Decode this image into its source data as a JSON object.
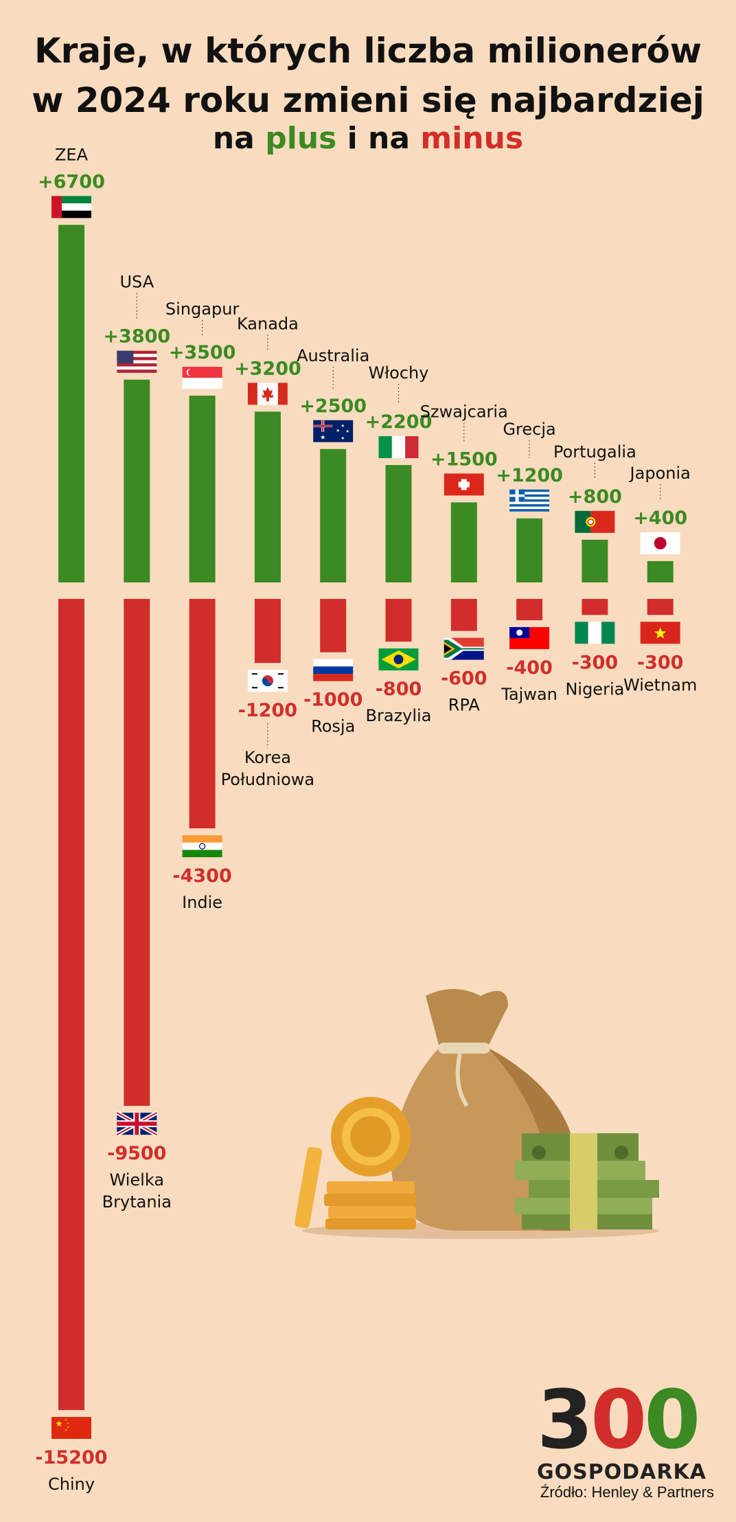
{
  "title_line1": "Kraje, w których liczba milionerów",
  "title_line2": "w 2024 roku zmieni się najbardziej",
  "subtitle": {
    "prefix": "na ",
    "plus": "plus",
    "middle": " i na ",
    "minus": "minus"
  },
  "colors": {
    "positive": "#3c8a23",
    "negative": "#d12e2b",
    "background": "#f9dcbf"
  },
  "chart_data": {
    "type": "bar",
    "positive": {
      "categories": [
        "ZEA",
        "USA",
        "Singapur",
        "Kanada",
        "Australia",
        "Włochy",
        "Szwajcaria",
        "Grecja",
        "Portugalia",
        "Japonia"
      ],
      "values": [
        6700,
        3800,
        3500,
        3200,
        2500,
        2200,
        1500,
        1200,
        800,
        400
      ],
      "labels": [
        "+6700",
        "+3800",
        "+3500",
        "+3200",
        "+2500",
        "+2200",
        "+1500",
        "+1200",
        "+800",
        "+400"
      ],
      "flags": [
        "uae-flag-icon",
        "usa-flag-icon",
        "singapore-flag-icon",
        "canada-flag-icon",
        "australia-flag-icon",
        "italy-flag-icon",
        "switzerland-flag-icon",
        "greece-flag-icon",
        "portugal-flag-icon",
        "japan-flag-icon"
      ]
    },
    "negative": {
      "categories": [
        "Chiny",
        "Wielka Brytania",
        "Indie",
        "Korea Południowa",
        "Rosja",
        "Brazylia",
        "RPA",
        "Tajwan",
        "Nigeria",
        "Wietnam"
      ],
      "name_lines": [
        [
          "Chiny"
        ],
        [
          "Wielka",
          "Brytania"
        ],
        [
          "Indie"
        ],
        [
          "Korea",
          "Południowa"
        ],
        [
          "Rosja"
        ],
        [
          "Brazylia"
        ],
        [
          "RPA"
        ],
        [
          "Tajwan"
        ],
        [
          "Nigeria"
        ],
        [
          "Wietnam"
        ]
      ],
      "values": [
        -15200,
        -9500,
        -4300,
        -1200,
        -1000,
        -800,
        -600,
        -400,
        -300,
        -300
      ],
      "labels": [
        "-15200",
        "-9500",
        "-4300",
        "-1200",
        "-1000",
        "-800",
        "-600",
        "-400",
        "-300",
        "-300"
      ],
      "flags": [
        "china-flag-icon",
        "uk-flag-icon",
        "india-flag-icon",
        "south-korea-flag-icon",
        "russia-flag-icon",
        "brazil-flag-icon",
        "south-africa-flag-icon",
        "taiwan-flag-icon",
        "nigeria-flag-icon",
        "vietnam-flag-icon"
      ]
    }
  },
  "logo": {
    "digits": [
      "3",
      "0",
      "0"
    ],
    "name": "GOSPODARKA"
  },
  "source": "Źródło: Henley & Partners"
}
